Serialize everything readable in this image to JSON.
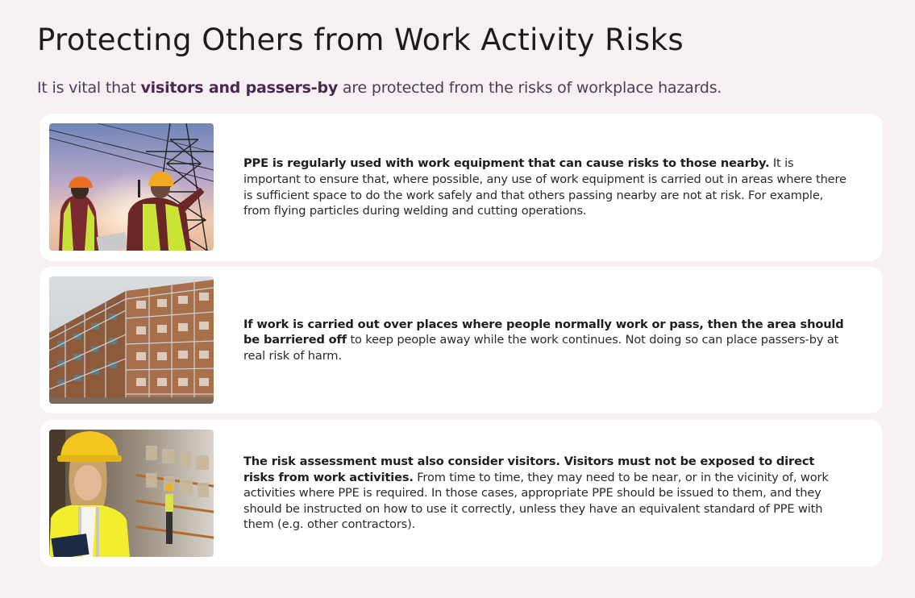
{
  "header": {
    "title": "Protecting Others from Work Activity Risks",
    "subtitle_pre": "It is vital that ",
    "subtitle_bold": "visitors and passers-by",
    "subtitle_post": " are protected from the risks of workplace hazards."
  },
  "cards": [
    {
      "image": "workers-under-power-lines-image",
      "bold": "PPE is regularly used with work equipment that can cause risks to those nearby.",
      "text": " It is important to ensure that, where possible, any use of work equipment is carried out in areas where there is sufficient space to do the work safely and that others passing nearby are not at risk. For example, from flying particles during welding and cutting operations."
    },
    {
      "image": "scaffolded-building-image",
      "bold": "If work is carried out over places where people normally work or pass, then the area should be barriered off",
      "text": " to keep people away while the work continues. Not doing so can place passers-by at real risk of harm."
    },
    {
      "image": "warehouse-visitor-in-hard-hat-image",
      "bold": "The risk assessment must also consider visitors. Visitors must not be exposed to direct risks from work activities.",
      "text": " From time to time, they may need to be near, or in the vicinity of, work activities where PPE is required. In those cases, appropriate PPE should be issued to them, and they should be instructed on how to use it correctly, unless they have an equivalent standard of PPE with them (e.g. other contractors)."
    }
  ]
}
